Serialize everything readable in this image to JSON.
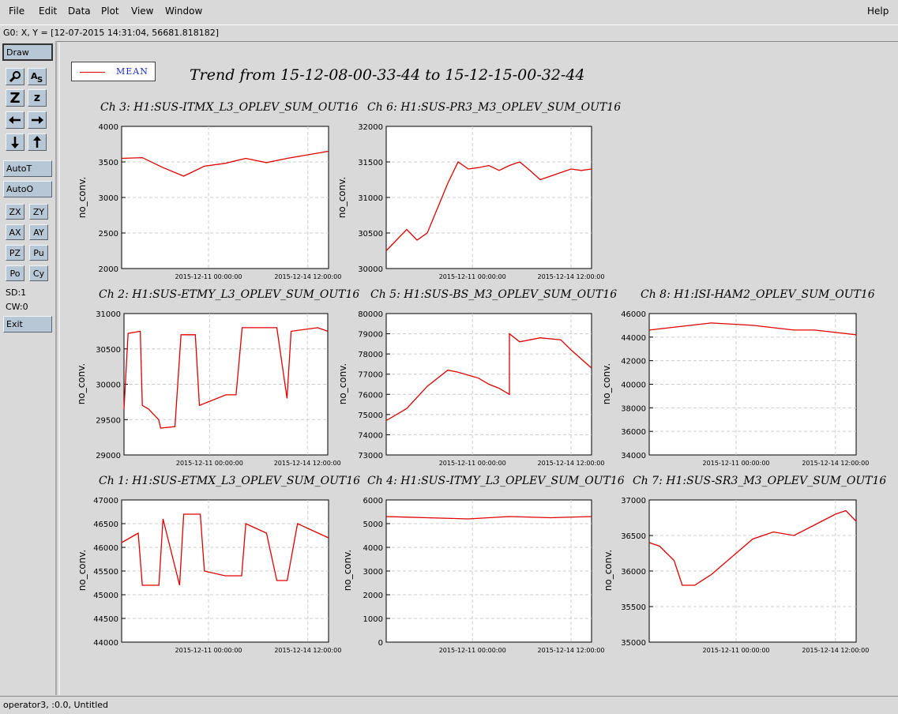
{
  "menu": {
    "file": "File",
    "edit": "Edit",
    "data": "Data",
    "plot": "Plot",
    "view": "View",
    "window": "Window",
    "help": "Help"
  },
  "coord_readout": "G0: X, Y = [12-07-2015 14:31:04, 56681.818182]",
  "status_text": "operator3, :0.0, Untitled",
  "toolbox": {
    "draw": "Draw",
    "zoom_icon": "magnifier-icon",
    "text_icon": "text-tool-icon",
    "zoom_big": "Z",
    "zoom_small": "z",
    "left_icon": "arrow-left-icon",
    "right_icon": "arrow-right-icon",
    "down_icon": "arrow-down-icon",
    "up_icon": "arrow-up-icon",
    "autot": "AutoT",
    "autoo": "AutoO",
    "zx": "ZX",
    "zy": "ZY",
    "ax": "AX",
    "ay": "AY",
    "pz": "PZ",
    "pu": "Pu",
    "po": "Po",
    "cy": "Cy",
    "sd": "SD:1",
    "cw": "CW:0",
    "exit": "Exit"
  },
  "legend": {
    "label": "MEAN",
    "color": "#e00000"
  },
  "main_title": "Trend from 15-12-08-00-33-44 to 15-12-15-00-32-44",
  "chart_data": [
    {
      "id": "ch3",
      "type": "line",
      "title": "Ch 3: H1:SUS-ITMX_L3_OPLEV_SUM_OUT16",
      "ylabel": "no_conv.",
      "ylim": [
        2000,
        4000
      ],
      "yticks": [
        "4000",
        "3500",
        "3000",
        "2500",
        "2000"
      ],
      "xticks": [
        "2015-12-11 00:00:00",
        "2015-12-14 12:00:00"
      ],
      "series": [
        {
          "color": "#e00000",
          "x": [
            0,
            0.1,
            0.2,
            0.3,
            0.4,
            0.5,
            0.6,
            0.7,
            0.8,
            0.9,
            1
          ],
          "values": [
            3550,
            3560,
            3420,
            3300,
            3440,
            3480,
            3550,
            3490,
            3550,
            3600,
            3650
          ]
        }
      ]
    },
    {
      "id": "ch6",
      "type": "line",
      "title": "Ch 6: H1:SUS-PR3_M3_OPLEV_SUM_OUT16",
      "ylabel": "no_conv.",
      "ylim": [
        30000,
        32000
      ],
      "yticks": [
        "32000",
        "31500",
        "31000",
        "30500",
        "30000"
      ],
      "xticks": [
        "2015-12-11 00:00:00",
        "2015-12-14 12:00:00"
      ],
      "series": [
        {
          "color": "#e00000",
          "x": [
            0,
            0.05,
            0.1,
            0.15,
            0.2,
            0.25,
            0.3,
            0.35,
            0.4,
            0.45,
            0.5,
            0.55,
            0.6,
            0.65,
            0.7,
            0.75,
            0.8,
            0.85,
            0.9,
            0.95,
            1
          ],
          "values": [
            30250,
            30400,
            30550,
            30400,
            30500,
            30850,
            31200,
            31500,
            31400,
            31420,
            31450,
            31380,
            31450,
            31500,
            31380,
            31250,
            31300,
            31350,
            31400,
            31380,
            31400
          ]
        }
      ]
    },
    {
      "id": "ch2",
      "type": "line",
      "title": "Ch 2: H1:SUS-ETMY_L3_OPLEV_SUM_OUT16",
      "ylabel": "no_conv.",
      "ylim": [
        29000,
        31000
      ],
      "yticks": [
        "31000",
        "30500",
        "30000",
        "29500",
        "29000"
      ],
      "xticks": [
        "2015-12-11 00:00:00",
        "2015-12-14 12:00:00"
      ],
      "series": [
        {
          "color": "#e00000",
          "x": [
            0,
            0.02,
            0.08,
            0.09,
            0.12,
            0.17,
            0.18,
            0.25,
            0.28,
            0.35,
            0.37,
            0.5,
            0.55,
            0.58,
            0.75,
            0.8,
            0.82,
            0.95,
            1
          ],
          "values": [
            29650,
            30720,
            30750,
            29700,
            29650,
            29500,
            29380,
            29400,
            30700,
            30700,
            29700,
            29850,
            29850,
            30800,
            30800,
            29800,
            30750,
            30800,
            30750
          ]
        }
      ]
    },
    {
      "id": "ch5",
      "type": "line",
      "title": "Ch 5: H1:SUS-BS_M3_OPLEV_SUM_OUT16",
      "ylabel": "no_conv.",
      "ylim": [
        73000,
        80000
      ],
      "yticks": [
        "80000",
        "79000",
        "78000",
        "77000",
        "76000",
        "75000",
        "74000",
        "73000"
      ],
      "xticks": [
        "2015-12-11 00:00:00",
        "2015-12-14 12:00:00"
      ],
      "series": [
        {
          "color": "#e00000",
          "x": [
            0,
            0.1,
            0.2,
            0.3,
            0.35,
            0.45,
            0.5,
            0.55,
            0.6,
            0.6,
            0.65,
            0.75,
            0.85,
            0.9,
            1
          ],
          "values": [
            74700,
            75300,
            76400,
            77200,
            77100,
            76800,
            76500,
            76300,
            76000,
            79000,
            78600,
            78800,
            78700,
            78200,
            77300
          ]
        }
      ]
    },
    {
      "id": "ch8",
      "type": "line",
      "title": "Ch 8: H1:ISI-HAM2_OPLEV_SUM_OUT16",
      "ylabel": "no_conv.",
      "ylim": [
        34000,
        46000
      ],
      "yticks": [
        "46000",
        "44000",
        "42000",
        "40000",
        "38000",
        "36000",
        "34000"
      ],
      "xticks": [
        "2015-12-11 00:00:00",
        "2015-12-14 12:00:00"
      ],
      "series": [
        {
          "color": "#e00000",
          "x": [
            0,
            0.1,
            0.2,
            0.3,
            0.5,
            0.7,
            0.8,
            0.9,
            1
          ],
          "values": [
            44600,
            44800,
            45000,
            45200,
            45000,
            44600,
            44600,
            44400,
            44200
          ]
        }
      ]
    },
    {
      "id": "ch1",
      "type": "line",
      "title": "Ch 1: H1:SUS-ETMX_L3_OPLEV_SUM_OUT16",
      "ylabel": "no_conv.",
      "ylim": [
        44000,
        47000
      ],
      "yticks": [
        "47000",
        "46500",
        "46000",
        "45500",
        "45000",
        "44500",
        "44000"
      ],
      "xticks": [
        "2015-12-11 00:00:00",
        "2015-12-14 12:00:00"
      ],
      "series": [
        {
          "color": "#e00000",
          "x": [
            0,
            0.08,
            0.1,
            0.18,
            0.2,
            0.28,
            0.3,
            0.38,
            0.4,
            0.5,
            0.55,
            0.58,
            0.6,
            0.7,
            0.75,
            0.8,
            0.85,
            0.9,
            0.95,
            1
          ],
          "values": [
            46100,
            46300,
            45200,
            45200,
            46600,
            45200,
            46700,
            46700,
            45500,
            45400,
            45400,
            45400,
            46500,
            46300,
            45300,
            45300,
            46500,
            46400,
            46300,
            46200
          ]
        }
      ]
    },
    {
      "id": "ch4",
      "type": "line",
      "title": "Ch 4: H1:SUS-ITMY_L3_OPLEV_SUM_OUT16",
      "ylabel": "no_conv.",
      "ylim": [
        0,
        6000
      ],
      "yticks": [
        "6000",
        "5000",
        "4000",
        "3000",
        "2000",
        "1000",
        "0"
      ],
      "xticks": [
        "2015-12-11 00:00:00",
        "2015-12-14 12:00:00"
      ],
      "series": [
        {
          "color": "#e00000",
          "x": [
            0,
            0.2,
            0.4,
            0.6,
            0.8,
            1
          ],
          "values": [
            5300,
            5250,
            5200,
            5300,
            5250,
            5300
          ]
        }
      ]
    },
    {
      "id": "ch7",
      "type": "line",
      "title": "Ch 7: H1:SUS-SR3_M3_OPLEV_SUM_OUT16",
      "ylabel": "no_conv.",
      "ylim": [
        35000,
        37000
      ],
      "yticks": [
        "37000",
        "36500",
        "36000",
        "35500",
        "35000"
      ],
      "xticks": [
        "2015-12-11 00:00:00",
        "2015-12-14 12:00:00"
      ],
      "series": [
        {
          "color": "#e00000",
          "x": [
            0,
            0.05,
            0.12,
            0.16,
            0.22,
            0.3,
            0.4,
            0.5,
            0.55,
            0.6,
            0.7,
            0.8,
            0.9,
            0.95,
            1
          ],
          "values": [
            36400,
            36350,
            36150,
            35800,
            35800,
            35950,
            36200,
            36450,
            36500,
            36550,
            36500,
            36650,
            36800,
            36850,
            36700
          ]
        }
      ]
    }
  ]
}
